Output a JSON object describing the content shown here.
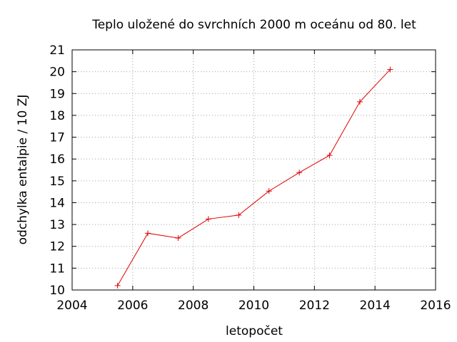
{
  "chart_data": {
    "type": "line",
    "title": "Teplo uložené do svrchních 2000 m oceánu od 80. let",
    "xlabel": "letopočet",
    "ylabel": "odchylka entalpie / 10 ZJ",
    "xlim": [
      2004,
      2016
    ],
    "ylim": [
      10,
      21
    ],
    "xticks": [
      2004,
      2006,
      2008,
      2010,
      2012,
      2014,
      2016
    ],
    "yticks": [
      10,
      11,
      12,
      13,
      14,
      15,
      16,
      17,
      18,
      19,
      20,
      21
    ],
    "grid": true,
    "series": [
      {
        "color": "#e00000",
        "marker": "plus",
        "x": [
          2005.5,
          2006.5,
          2007.5,
          2008.5,
          2009.5,
          2010.5,
          2011.5,
          2012.5,
          2013.5,
          2014.5
        ],
        "y": [
          10.2,
          12.6,
          12.38,
          13.25,
          13.43,
          14.53,
          15.38,
          16.17,
          18.62,
          20.1
        ]
      }
    ]
  }
}
